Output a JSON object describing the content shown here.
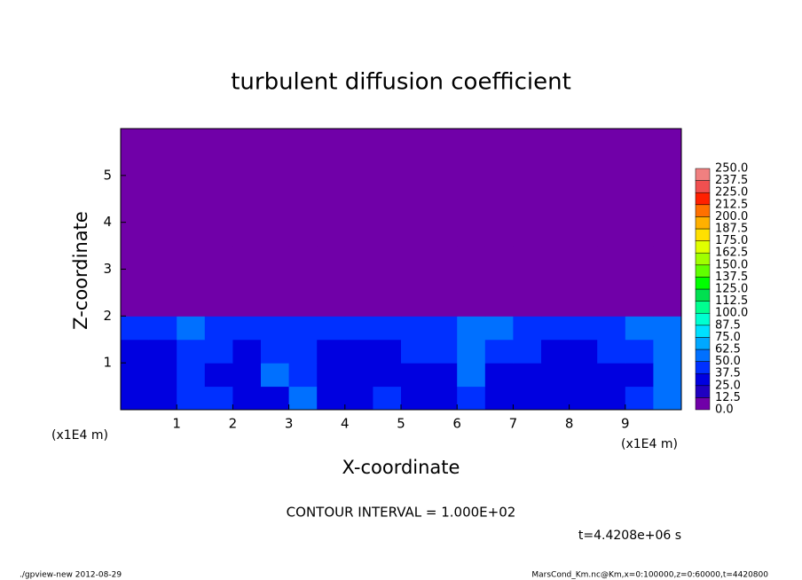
{
  "chart_data": {
    "type": "heatmap",
    "title": "turbulent diffusion coefficient",
    "xlabel": "X-coordinate",
    "ylabel": "Z-coordinate",
    "xunit": "(x1E4 m)",
    "yunit": "(x1E4 m)",
    "note": "CONTOUR INTERVAL = 1.000E+02",
    "time": "t=4.4208e+06 s",
    "footer_left": "./gpview-new  2012-08-29",
    "footer_right": "MarsCond_Km.nc@Km,x=0:100000,z=0:60000,t=4420800",
    "xlim": [
      0,
      10
    ],
    "ylim": [
      0,
      6
    ],
    "xticks": [
      1,
      2,
      3,
      4,
      5,
      6,
      7,
      8,
      9
    ],
    "yticks": [
      1,
      2,
      3,
      4,
      5
    ],
    "values": [
      [
        30,
        35,
        45,
        40,
        25,
        35,
        55,
        30,
        28,
        40,
        30,
        25,
        45,
        35,
        30,
        28,
        30,
        35,
        40,
        50
      ],
      [
        28,
        25,
        40,
        35,
        30,
        50,
        45,
        25,
        25,
        35,
        30,
        35,
        55,
        30,
        28,
        30,
        30,
        32,
        35,
        55
      ],
      [
        35,
        30,
        45,
        40,
        35,
        45,
        40,
        35,
        30,
        35,
        40,
        45,
        55,
        40,
        40,
        35,
        35,
        38,
        40,
        60
      ],
      [
        40,
        45,
        50,
        45,
        45,
        40,
        45,
        40,
        40,
        45,
        45,
        45,
        50,
        50,
        45,
        45,
        45,
        45,
        50,
        55
      ],
      [
        0,
        0,
        0,
        0,
        0,
        0,
        0,
        0,
        0,
        0,
        0,
        0,
        0,
        0,
        0,
        0,
        0,
        0,
        0,
        0
      ],
      [
        0,
        0,
        0,
        0,
        0,
        0,
        0,
        0,
        0,
        0,
        0,
        0,
        0,
        0,
        0,
        0,
        0,
        0,
        0,
        0
      ],
      [
        0,
        0,
        0,
        0,
        0,
        0,
        0,
        0,
        0,
        0,
        0,
        0,
        0,
        0,
        0,
        0,
        0,
        0,
        0,
        0
      ],
      [
        0,
        0,
        0,
        0,
        0,
        0,
        0,
        0,
        0,
        0,
        0,
        0,
        0,
        0,
        0,
        0,
        0,
        0,
        0,
        0
      ],
      [
        0,
        0,
        0,
        0,
        0,
        0,
        0,
        0,
        0,
        0,
        0,
        0,
        0,
        0,
        0,
        0,
        0,
        0,
        0,
        0
      ],
      [
        0,
        0,
        0,
        0,
        0,
        0,
        0,
        0,
        0,
        0,
        0,
        0,
        0,
        0,
        0,
        0,
        0,
        0,
        0,
        0
      ],
      [
        0,
        0,
        0,
        0,
        0,
        0,
        0,
        0,
        0,
        0,
        0,
        0,
        0,
        0,
        0,
        0,
        0,
        0,
        0,
        0
      ],
      [
        0,
        0,
        0,
        0,
        0,
        0,
        0,
        0,
        0,
        0,
        0,
        0,
        0,
        0,
        0,
        0,
        0,
        0,
        0,
        0
      ]
    ],
    "levels": [
      {
        "value": 0,
        "label": "0.0"
      },
      {
        "value": 12.5,
        "label": "12.5"
      },
      {
        "value": 25,
        "label": "25.0"
      },
      {
        "value": 37.5,
        "label": "37.5"
      },
      {
        "value": 50,
        "label": "50.0"
      },
      {
        "value": 62.5,
        "label": "62.5"
      },
      {
        "value": 75,
        "label": "75.0"
      },
      {
        "value": 87.5,
        "label": "87.5"
      },
      {
        "value": 100,
        "label": "100.0"
      },
      {
        "value": 112.5,
        "label": "112.5"
      },
      {
        "value": 125,
        "label": "125.0"
      },
      {
        "value": 137.5,
        "label": "137.5"
      },
      {
        "value": 150,
        "label": "150.0"
      },
      {
        "value": 162.5,
        "label": "162.5"
      },
      {
        "value": 175,
        "label": "175.0"
      },
      {
        "value": 187.5,
        "label": "187.5"
      },
      {
        "value": 200,
        "label": "200.0"
      },
      {
        "value": 212.5,
        "label": "212.5"
      },
      {
        "value": 225,
        "label": "225.0"
      },
      {
        "value": 237.5,
        "label": "237.5"
      },
      {
        "value": 250,
        "label": "250.0"
      }
    ],
    "colors": [
      "#7000a8",
      "#2000c0",
      "#0000e0",
      "#0030ff",
      "#0070ff",
      "#00a8ff",
      "#00e0ff",
      "#00ffd0",
      "#00ff90",
      "#00e050",
      "#00ff00",
      "#60ff00",
      "#a0ff00",
      "#e0ff00",
      "#ffe000",
      "#ffb000",
      "#ff7000",
      "#ff2000",
      "#f05050",
      "#f08080"
    ]
  }
}
